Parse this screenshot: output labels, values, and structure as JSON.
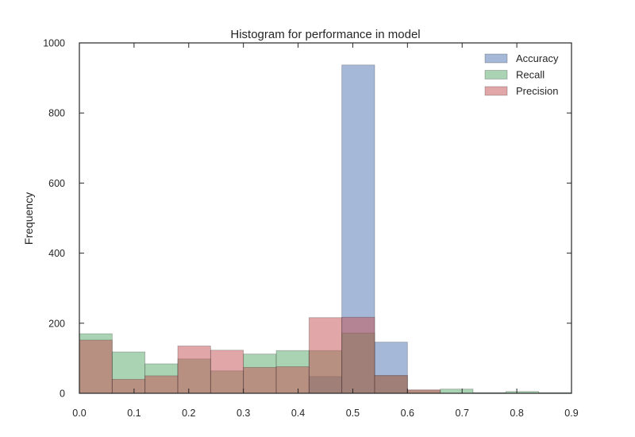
{
  "chart_data": {
    "type": "histogram",
    "title": "Histogram for performance in model",
    "xlabel": "",
    "ylabel": "Frequency",
    "xlim": [
      0.0,
      0.9
    ],
    "ylim": [
      0,
      1000
    ],
    "x_ticks": [
      "0.0",
      "0.1",
      "0.2",
      "0.3",
      "0.4",
      "0.5",
      "0.6",
      "0.7",
      "0.8",
      "0.9"
    ],
    "y_ticks": [
      "0",
      "200",
      "400",
      "600",
      "800",
      "1000"
    ],
    "grid": false,
    "legend_position": "top-right",
    "series": [
      {
        "name": "Accuracy",
        "color": "#4c72b0",
        "bins": [
          {
            "x0": 0.42,
            "x1": 0.48,
            "count": 48
          },
          {
            "x0": 0.48,
            "x1": 0.54,
            "count": 937
          },
          {
            "x0": 0.54,
            "x1": 0.6,
            "count": 146
          }
        ]
      },
      {
        "name": "Recall",
        "color": "#55a868",
        "bins": [
          {
            "x0": 0.0,
            "x1": 0.06,
            "count": 170
          },
          {
            "x0": 0.06,
            "x1": 0.12,
            "count": 118
          },
          {
            "x0": 0.12,
            "x1": 0.18,
            "count": 84
          },
          {
            "x0": 0.18,
            "x1": 0.24,
            "count": 98
          },
          {
            "x0": 0.24,
            "x1": 0.3,
            "count": 64
          },
          {
            "x0": 0.3,
            "x1": 0.36,
            "count": 112
          },
          {
            "x0": 0.36,
            "x1": 0.42,
            "count": 122
          },
          {
            "x0": 0.42,
            "x1": 0.48,
            "count": 122
          },
          {
            "x0": 0.48,
            "x1": 0.54,
            "count": 172
          },
          {
            "x0": 0.54,
            "x1": 0.6,
            "count": 50
          },
          {
            "x0": 0.6,
            "x1": 0.66,
            "count": 8
          },
          {
            "x0": 0.66,
            "x1": 0.72,
            "count": 12
          },
          {
            "x0": 0.72,
            "x1": 0.78,
            "count": 2
          },
          {
            "x0": 0.78,
            "x1": 0.84,
            "count": 5
          },
          {
            "x0": 0.84,
            "x1": 0.9,
            "count": 2
          }
        ]
      },
      {
        "name": "Precision",
        "color": "#c44e52",
        "bins": [
          {
            "x0": 0.0,
            "x1": 0.06,
            "count": 152
          },
          {
            "x0": 0.06,
            "x1": 0.12,
            "count": 40
          },
          {
            "x0": 0.12,
            "x1": 0.18,
            "count": 50
          },
          {
            "x0": 0.18,
            "x1": 0.24,
            "count": 135
          },
          {
            "x0": 0.24,
            "x1": 0.3,
            "count": 123
          },
          {
            "x0": 0.3,
            "x1": 0.36,
            "count": 74
          },
          {
            "x0": 0.36,
            "x1": 0.42,
            "count": 76
          },
          {
            "x0": 0.42,
            "x1": 0.48,
            "count": 216
          },
          {
            "x0": 0.48,
            "x1": 0.54,
            "count": 217
          },
          {
            "x0": 0.54,
            "x1": 0.6,
            "count": 51
          },
          {
            "x0": 0.6,
            "x1": 0.66,
            "count": 10
          }
        ]
      }
    ]
  }
}
